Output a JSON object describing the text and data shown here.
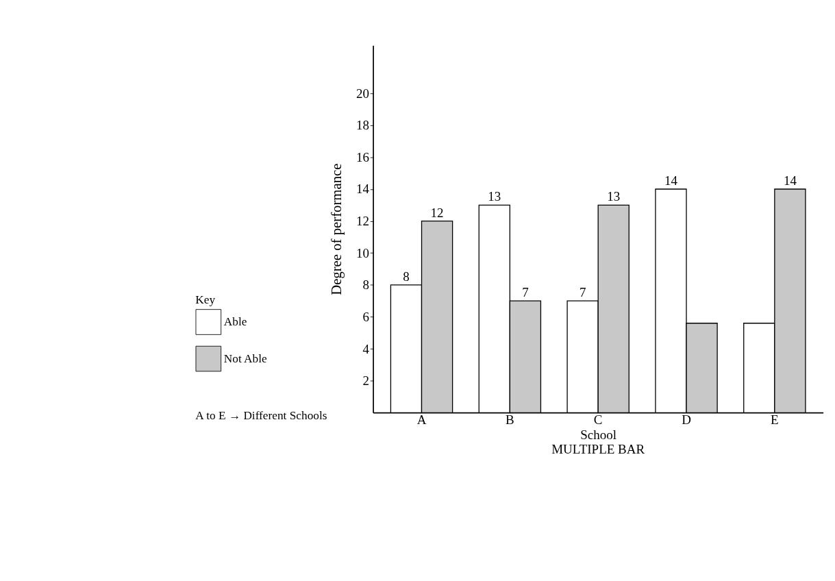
{
  "chart_data": {
    "type": "bar",
    "title": "MULTIPLE BAR",
    "xlabel": "School",
    "ylabel": "Degree of performance",
    "legend_title": "Key",
    "categories": [
      "A",
      "B",
      "C",
      "D",
      "E"
    ],
    "series": [
      {
        "name": "Able",
        "color": "#ffffff",
        "values": [
          8,
          13,
          7,
          14,
          5.6
        ],
        "value_labels": [
          "8",
          "13",
          "7",
          "14",
          null
        ]
      },
      {
        "name": "Not Able",
        "color": "#c8c8c8",
        "values": [
          12,
          7,
          13,
          5.6,
          14
        ],
        "value_labels": [
          "12",
          "7",
          "13",
          null,
          "14"
        ]
      }
    ],
    "ylim": [
      0,
      23
    ],
    "yticks": [
      2,
      4,
      6,
      8,
      10,
      12,
      14,
      16,
      18,
      20
    ],
    "grid": false,
    "legend": "bottom left",
    "annotations": [
      "A to E → Different Schools"
    ]
  }
}
